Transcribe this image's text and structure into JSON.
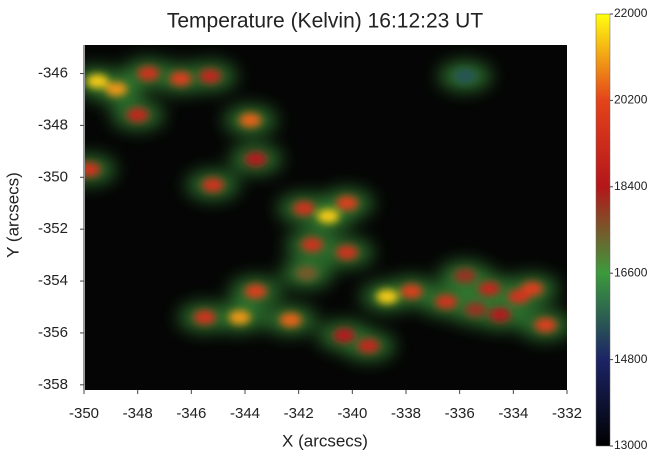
{
  "chart_data": {
    "type": "heatmap",
    "title": "Temperature (Kelvin) 16:12:23 UT",
    "xlabel": "X (arcsecs)",
    "ylabel": "Y (arcsecs)",
    "xlim": [
      -350,
      -332
    ],
    "xticks": [
      -350,
      -348,
      -346,
      -344,
      -342,
      -340,
      -338,
      -336,
      -334,
      -332
    ],
    "ylim": [
      -358.2,
      -344.9
    ],
    "yticks": [
      -346,
      -348,
      -350,
      -352,
      -354,
      -356,
      -358
    ],
    "clim": [
      13000,
      22000
    ],
    "cticks": [
      22000,
      20200,
      18400,
      16600,
      14800,
      13000
    ],
    "colormap": [
      "#000000",
      "#1c2466",
      "#3c9a3c",
      "#b4161a",
      "#e4431a",
      "#ffff10"
    ],
    "background": "#050505",
    "points": {
      "x": [
        -349.5,
        -348.8,
        -347.6,
        -346.4,
        -345.3,
        -348,
        -343.8,
        -349.8,
        -345.2,
        -343.6,
        -341.8,
        -340.9,
        -340.2,
        -341.5,
        -340.2,
        -343.6,
        -341.7,
        -345.5,
        -344.2,
        -342.3,
        -340.3,
        -339.4,
        -338.7,
        -337.8,
        -336.5,
        -335.4,
        -335.8,
        -334.9,
        -333.8,
        -333.3,
        -332.8,
        -334.5,
        -335.8
      ],
      "y": [
        -346.3,
        -346.6,
        -346,
        -346.2,
        -346.1,
        -347.6,
        -347.8,
        -349.7,
        -350.3,
        -349.3,
        -351.2,
        -351.5,
        -351,
        -352.6,
        -352.9,
        -354.4,
        -353.7,
        -355.4,
        -355.4,
        -355.5,
        -356.1,
        -356.5,
        -354.6,
        -354.4,
        -354.8,
        -355.1,
        -353.8,
        -354.3,
        -354.6,
        -354.3,
        -355.7,
        -355.3,
        -346.1
      ],
      "values": [
        21500,
        21000,
        19500,
        20000,
        19000,
        19000,
        20500,
        19500,
        19500,
        18500,
        19500,
        21500,
        20000,
        19500,
        19500,
        20000,
        17500,
        19500,
        21000,
        20500,
        18500,
        19000,
        21500,
        20000,
        19500,
        18000,
        18000,
        19000,
        19500,
        20000,
        20000,
        18500,
        15500
      ]
    }
  }
}
